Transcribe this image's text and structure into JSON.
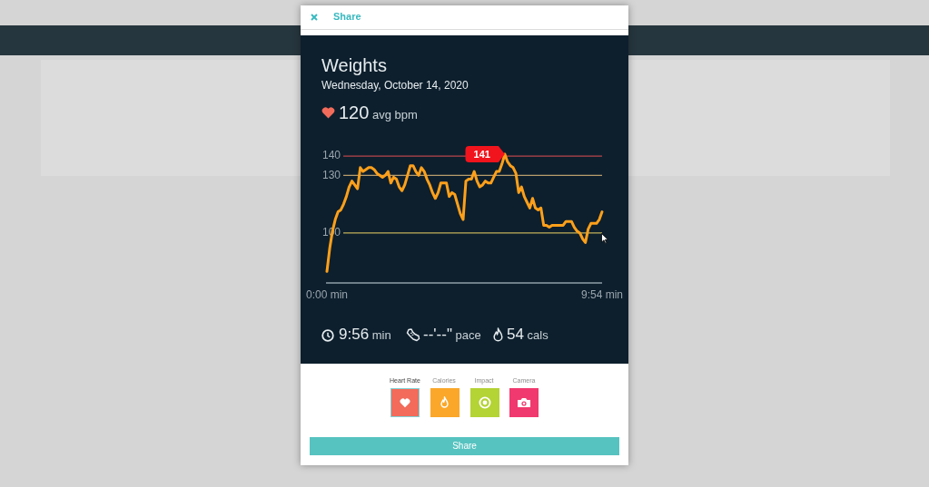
{
  "chart_data": {
    "type": "line",
    "title": "Weights",
    "subtitle": "Wednesday, October 14, 2020",
    "annotations": [
      "120 avg bpm",
      "9:56 min",
      "--'--\" pace",
      "54 cals",
      "Share",
      "Heart Rate",
      "Calories",
      "Impact",
      "Camera",
      "Share"
    ],
    "categories": [
      "0:00 min",
      null,
      null,
      null,
      null,
      null,
      null,
      null,
      null,
      null,
      null,
      null,
      null,
      null,
      null,
      null,
      null,
      null,
      null,
      null,
      null,
      null,
      null,
      null,
      null,
      null,
      null,
      null,
      null,
      null,
      null,
      null,
      null,
      null,
      null,
      null,
      null,
      null,
      null,
      null,
      null,
      null,
      null,
      null,
      null,
      null,
      null,
      null,
      null,
      null,
      null,
      null,
      null,
      null,
      null,
      null,
      null,
      null,
      null,
      null,
      null,
      null,
      null,
      null,
      null,
      null,
      null,
      null,
      null,
      null,
      null,
      null,
      null,
      null,
      null,
      null,
      null,
      null,
      null,
      null,
      null,
      null,
      null,
      null,
      null,
      null,
      null,
      null,
      null,
      null,
      null,
      null,
      null,
      null,
      null,
      null,
      null,
      null,
      null,
      "9:54 min"
    ],
    "values": [
      80,
      92,
      101,
      107,
      111,
      112,
      115,
      119,
      124,
      127,
      125,
      123,
      134,
      132,
      133,
      134,
      134,
      133,
      131,
      130,
      129,
      130,
      132,
      126,
      129,
      128,
      124,
      122,
      125,
      130,
      135,
      135,
      132,
      130,
      134,
      132,
      128,
      125,
      121,
      118,
      121,
      126,
      126,
      126,
      119,
      121,
      120,
      115,
      110,
      107,
      127,
      128,
      128,
      132,
      127,
      124,
      125,
      127,
      126,
      126,
      129,
      132,
      132,
      136,
      141,
      137,
      135,
      134,
      131,
      121,
      124,
      119,
      116,
      113,
      118,
      113,
      112,
      113,
      104,
      104,
      103,
      104,
      104,
      104,
      104,
      104,
      106,
      106,
      106,
      103,
      101,
      100,
      97,
      95,
      102,
      105,
      105,
      105,
      107,
      111
    ],
    "color": "#ffa01a",
    "value_labels": [
      null,
      null,
      null,
      null,
      null,
      null,
      null,
      null,
      null,
      null,
      null,
      null,
      null,
      null,
      null,
      null,
      null,
      null,
      null,
      null,
      null,
      null,
      null,
      null,
      null,
      null,
      null,
      null,
      null,
      null,
      null,
      null,
      null,
      null,
      null,
      null,
      null,
      null,
      null,
      null,
      null,
      null,
      null,
      null,
      null,
      null,
      null,
      null,
      null,
      null,
      null,
      null,
      null,
      null,
      null,
      null,
      null,
      null,
      null,
      null,
      null,
      null,
      null,
      null,
      "141",
      null,
      null,
      null,
      null,
      null,
      null,
      null,
      null,
      null,
      null,
      null,
      null,
      null,
      null,
      null,
      null,
      null,
      null,
      null,
      null,
      null,
      null,
      null,
      null,
      null,
      null,
      null,
      null,
      null,
      null,
      null,
      null,
      null,
      null,
      null
    ],
    "ylim": [
      74,
      141
    ],
    "yticks": [
      100,
      130,
      140
    ],
    "ref_lines": [
      {
        "axis": "y",
        "value": 140,
        "color": "#b8474c"
      },
      {
        "axis": "y",
        "value": 130,
        "color": "#b89c6c"
      },
      {
        "axis": "y",
        "value": 100,
        "color": "#c2b25a"
      }
    ]
  }
}
